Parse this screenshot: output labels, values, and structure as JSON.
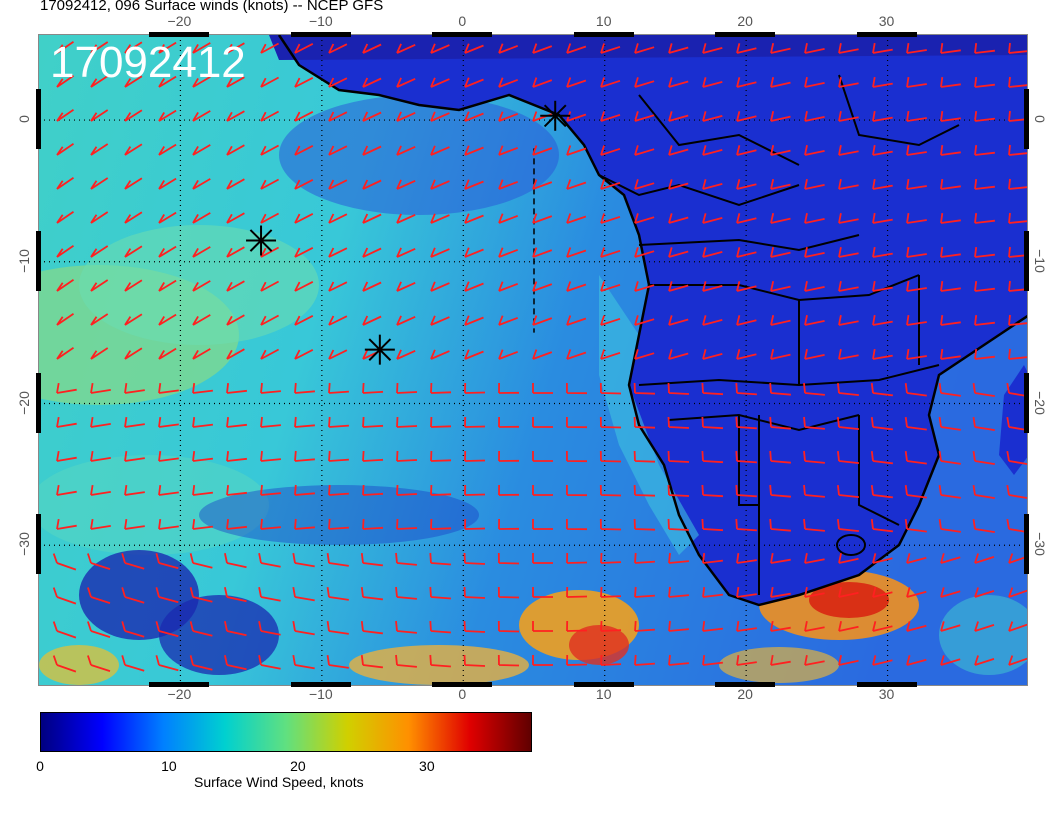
{
  "title": "17092412, 096 Surface winds (knots) -- NCEP GFS",
  "stamp": "17092412",
  "axes": {
    "lon_ticks": [
      {
        "label": "−20",
        "lon": -20
      },
      {
        "label": "−10",
        "lon": -10
      },
      {
        "label": "0",
        "lon": 0
      },
      {
        "label": "10",
        "lon": 10
      },
      {
        "label": "20",
        "lon": 20
      },
      {
        "label": "30",
        "lon": 30
      }
    ],
    "lat_ticks_left": [
      {
        "label": "0",
        "lat": 0
      },
      {
        "label": "−10",
        "lat": -10
      },
      {
        "label": "−20",
        "lat": -20
      },
      {
        "label": "−30",
        "lat": -30
      }
    ],
    "lat_ticks_right": [
      {
        "label": "0",
        "lat": 0
      },
      {
        "label": "−10",
        "lat": -10
      },
      {
        "label": "−20",
        "lat": -20
      },
      {
        "label": "−30",
        "lat": -30
      }
    ],
    "lon_range": [
      -30,
      40
    ],
    "lat_range": [
      -40,
      6
    ],
    "grid": true
  },
  "markers": [
    {
      "lon": -14.3,
      "lat": -8.5
    },
    {
      "lon": -5.9,
      "lat": -16.2
    },
    {
      "lon": 6.5,
      "lat": 0.3
    }
  ],
  "colorbar": {
    "label": "Surface Wind Speed, knots",
    "ticks": [
      {
        "label": "0",
        "value": 0
      },
      {
        "label": "10",
        "value": 10
      },
      {
        "label": "20",
        "value": 20
      },
      {
        "label": "30",
        "value": 30
      }
    ],
    "range": [
      0,
      38
    ],
    "colors": [
      "#000080",
      "#0000ff",
      "#0080ff",
      "#00d0d0",
      "#60e080",
      "#d0d000",
      "#ff9000",
      "#e00000",
      "#600000"
    ]
  },
  "colors": {
    "barb": "#ff2020",
    "coast": "#000000",
    "land_base": "#1a2fd0",
    "ocean_base": "#30b8e0"
  }
}
